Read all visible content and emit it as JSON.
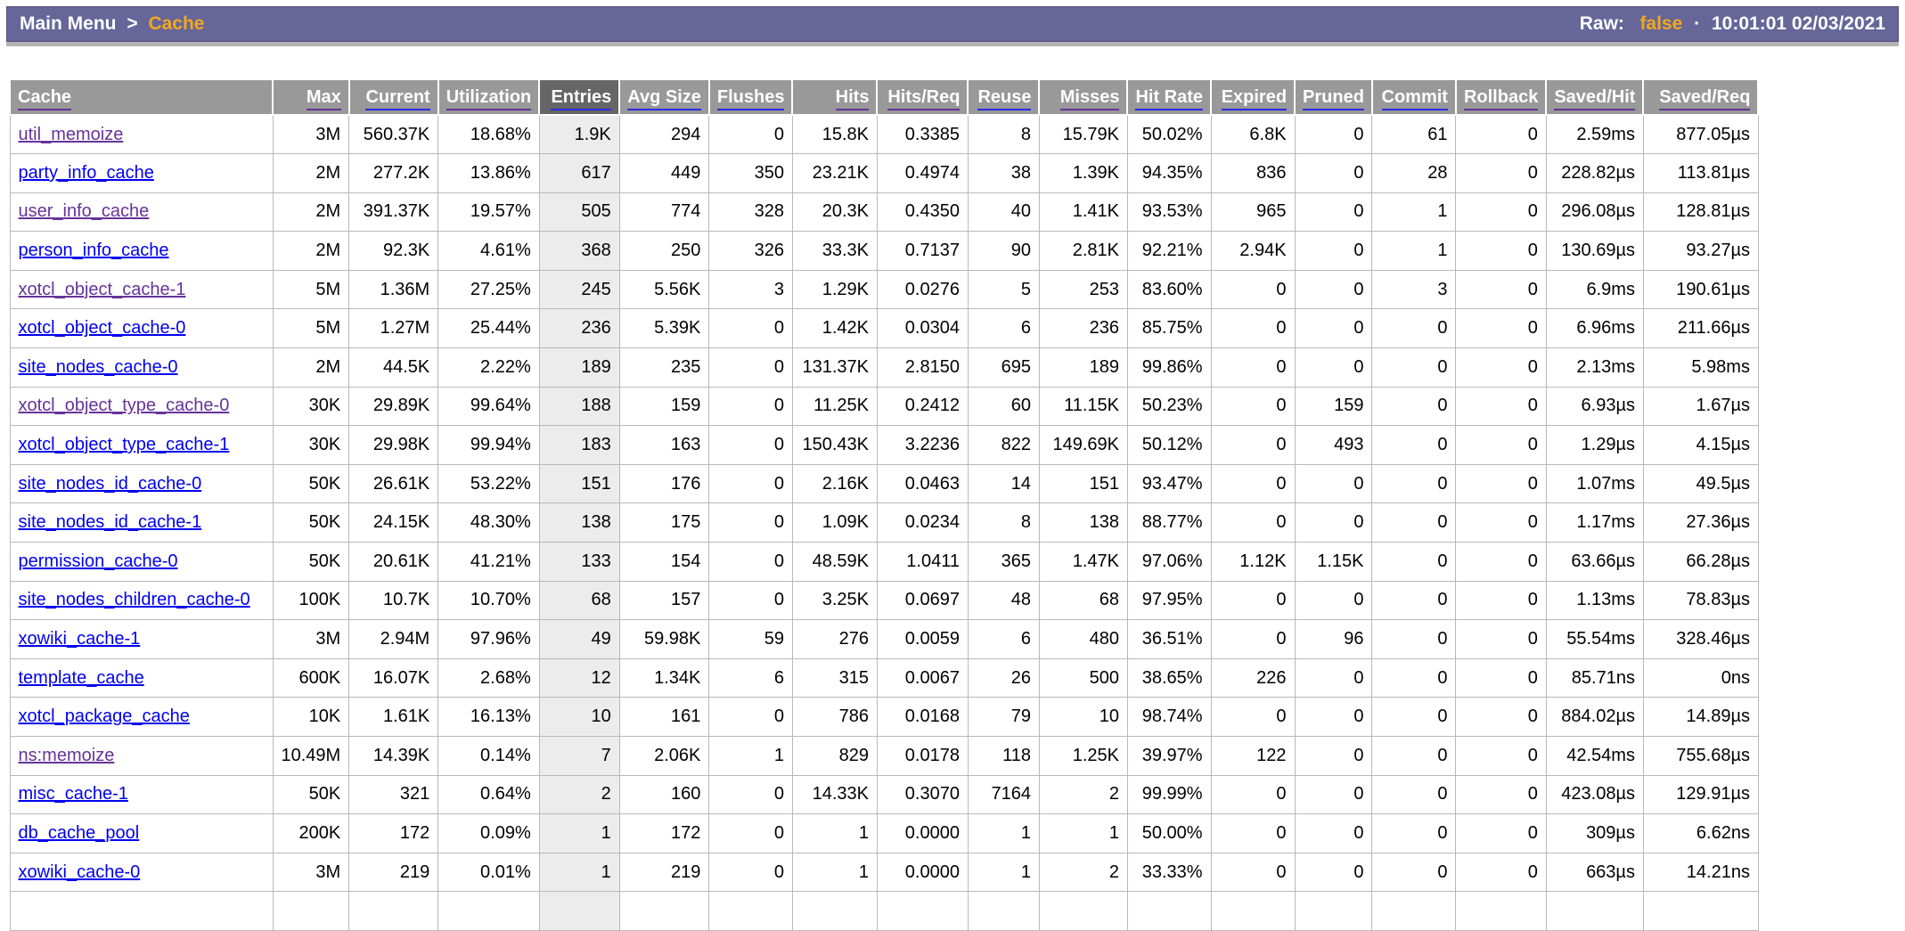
{
  "topbar": {
    "breadcrumb": {
      "root": "Main Menu",
      "separator": ">",
      "current": "Cache"
    },
    "raw": {
      "label": "Raw:",
      "value": "false"
    },
    "separator_dot": "·",
    "timestamp": "10:01:01 02/03/2021"
  },
  "colors": {
    "topbar_bg": "#666699",
    "accent_gold": "#F2A71E",
    "header_bg": "#999999",
    "header_active_bg": "#666666",
    "entries_column_bg": "#ECECEC",
    "link_blue": "#0000EE",
    "link_visited_purple": "#663399"
  },
  "table": {
    "columns": [
      {
        "label": "Cache",
        "align": "left",
        "link": "visited",
        "active": false
      },
      {
        "label": "Max",
        "align": "right",
        "link": "visited",
        "active": false
      },
      {
        "label": "Current",
        "align": "right",
        "link": "unvisited",
        "active": false
      },
      {
        "label": "Utilization",
        "align": "right",
        "link": "visited",
        "active": false
      },
      {
        "label": "Entries",
        "align": "right",
        "link": "unvisited",
        "active": true
      },
      {
        "label": "Avg Size",
        "align": "right",
        "link": "unvisited",
        "active": false
      },
      {
        "label": "Flushes",
        "align": "right",
        "link": "unvisited",
        "active": false
      },
      {
        "label": "Hits",
        "align": "right",
        "link": "visited",
        "active": false
      },
      {
        "label": "Hits/Req",
        "align": "right",
        "link": "visited",
        "active": false
      },
      {
        "label": "Reuse",
        "align": "right",
        "link": "unvisited",
        "active": false
      },
      {
        "label": "Misses",
        "align": "right",
        "link": "visited",
        "active": false
      },
      {
        "label": "Hit Rate",
        "align": "right",
        "link": "unvisited",
        "active": false
      },
      {
        "label": "Expired",
        "align": "right",
        "link": "unvisited",
        "active": false
      },
      {
        "label": "Pruned",
        "align": "right",
        "link": "unvisited",
        "active": false
      },
      {
        "label": "Commit",
        "align": "right",
        "link": "unvisited",
        "active": false
      },
      {
        "label": "Rollback",
        "align": "right",
        "link": "visited",
        "active": false
      },
      {
        "label": "Saved/Hit",
        "align": "right",
        "link": "visited",
        "active": false
      },
      {
        "label": "Saved/Req",
        "align": "right",
        "link": "visited",
        "active": false
      }
    ],
    "rows": [
      {
        "name": "util_memoize",
        "link": "visited",
        "values": [
          "3M",
          "560.37K",
          "18.68%",
          "1.9K",
          "294",
          "0",
          "15.8K",
          "0.3385",
          "8",
          "15.79K",
          "50.02%",
          "6.8K",
          "0",
          "61",
          "0",
          "2.59ms",
          "877.05µs"
        ]
      },
      {
        "name": "party_info_cache",
        "link": "unvisited",
        "values": [
          "2M",
          "277.2K",
          "13.86%",
          "617",
          "449",
          "350",
          "23.21K",
          "0.4974",
          "38",
          "1.39K",
          "94.35%",
          "836",
          "0",
          "28",
          "0",
          "228.82µs",
          "113.81µs"
        ]
      },
      {
        "name": "user_info_cache",
        "link": "visited",
        "values": [
          "2M",
          "391.37K",
          "19.57%",
          "505",
          "774",
          "328",
          "20.3K",
          "0.4350",
          "40",
          "1.41K",
          "93.53%",
          "965",
          "0",
          "1",
          "0",
          "296.08µs",
          "128.81µs"
        ]
      },
      {
        "name": "person_info_cache",
        "link": "unvisited",
        "values": [
          "2M",
          "92.3K",
          "4.61%",
          "368",
          "250",
          "326",
          "33.3K",
          "0.7137",
          "90",
          "2.81K",
          "92.21%",
          "2.94K",
          "0",
          "1",
          "0",
          "130.69µs",
          "93.27µs"
        ]
      },
      {
        "name": "xotcl_object_cache-1",
        "link": "visited",
        "values": [
          "5M",
          "1.36M",
          "27.25%",
          "245",
          "5.56K",
          "3",
          "1.29K",
          "0.0276",
          "5",
          "253",
          "83.60%",
          "0",
          "0",
          "3",
          "0",
          "6.9ms",
          "190.61µs"
        ]
      },
      {
        "name": "xotcl_object_cache-0",
        "link": "unvisited",
        "values": [
          "5M",
          "1.27M",
          "25.44%",
          "236",
          "5.39K",
          "0",
          "1.42K",
          "0.0304",
          "6",
          "236",
          "85.75%",
          "0",
          "0",
          "0",
          "0",
          "6.96ms",
          "211.66µs"
        ]
      },
      {
        "name": "site_nodes_cache-0",
        "link": "unvisited",
        "values": [
          "2M",
          "44.5K",
          "2.22%",
          "189",
          "235",
          "0",
          "131.37K",
          "2.8150",
          "695",
          "189",
          "99.86%",
          "0",
          "0",
          "0",
          "0",
          "2.13ms",
          "5.98ms"
        ]
      },
      {
        "name": "xotcl_object_type_cache-0",
        "link": "visited",
        "values": [
          "30K",
          "29.89K",
          "99.64%",
          "188",
          "159",
          "0",
          "11.25K",
          "0.2412",
          "60",
          "11.15K",
          "50.23%",
          "0",
          "159",
          "0",
          "0",
          "6.93µs",
          "1.67µs"
        ]
      },
      {
        "name": "xotcl_object_type_cache-1",
        "link": "unvisited",
        "values": [
          "30K",
          "29.98K",
          "99.94%",
          "183",
          "163",
          "0",
          "150.43K",
          "3.2236",
          "822",
          "149.69K",
          "50.12%",
          "0",
          "493",
          "0",
          "0",
          "1.29µs",
          "4.15µs"
        ]
      },
      {
        "name": "site_nodes_id_cache-0",
        "link": "unvisited",
        "values": [
          "50K",
          "26.61K",
          "53.22%",
          "151",
          "176",
          "0",
          "2.16K",
          "0.0463",
          "14",
          "151",
          "93.47%",
          "0",
          "0",
          "0",
          "0",
          "1.07ms",
          "49.5µs"
        ]
      },
      {
        "name": "site_nodes_id_cache-1",
        "link": "unvisited",
        "values": [
          "50K",
          "24.15K",
          "48.30%",
          "138",
          "175",
          "0",
          "1.09K",
          "0.0234",
          "8",
          "138",
          "88.77%",
          "0",
          "0",
          "0",
          "0",
          "1.17ms",
          "27.36µs"
        ]
      },
      {
        "name": "permission_cache-0",
        "link": "unvisited",
        "values": [
          "50K",
          "20.61K",
          "41.21%",
          "133",
          "154",
          "0",
          "48.59K",
          "1.0411",
          "365",
          "1.47K",
          "97.06%",
          "1.12K",
          "1.15K",
          "0",
          "0",
          "63.66µs",
          "66.28µs"
        ]
      },
      {
        "name": "site_nodes_children_cache-0",
        "link": "unvisited",
        "values": [
          "100K",
          "10.7K",
          "10.70%",
          "68",
          "157",
          "0",
          "3.25K",
          "0.0697",
          "48",
          "68",
          "97.95%",
          "0",
          "0",
          "0",
          "0",
          "1.13ms",
          "78.83µs"
        ]
      },
      {
        "name": "xowiki_cache-1",
        "link": "unvisited",
        "values": [
          "3M",
          "2.94M",
          "97.96%",
          "49",
          "59.98K",
          "59",
          "276",
          "0.0059",
          "6",
          "480",
          "36.51%",
          "0",
          "96",
          "0",
          "0",
          "55.54ms",
          "328.46µs"
        ]
      },
      {
        "name": "template_cache",
        "link": "unvisited",
        "values": [
          "600K",
          "16.07K",
          "2.68%",
          "12",
          "1.34K",
          "6",
          "315",
          "0.0067",
          "26",
          "500",
          "38.65%",
          "226",
          "0",
          "0",
          "0",
          "85.71ns",
          "0ns"
        ]
      },
      {
        "name": "xotcl_package_cache",
        "link": "unvisited",
        "values": [
          "10K",
          "1.61K",
          "16.13%",
          "10",
          "161",
          "0",
          "786",
          "0.0168",
          "79",
          "10",
          "98.74%",
          "0",
          "0",
          "0",
          "0",
          "884.02µs",
          "14.89µs"
        ]
      },
      {
        "name": "ns:memoize",
        "link": "visited",
        "values": [
          "10.49M",
          "14.39K",
          "0.14%",
          "7",
          "2.06K",
          "1",
          "829",
          "0.0178",
          "118",
          "1.25K",
          "39.97%",
          "122",
          "0",
          "0",
          "0",
          "42.54ms",
          "755.68µs"
        ]
      },
      {
        "name": "misc_cache-1",
        "link": "unvisited",
        "values": [
          "50K",
          "321",
          "0.64%",
          "2",
          "160",
          "0",
          "14.33K",
          "0.3070",
          "7164",
          "2",
          "99.99%",
          "0",
          "0",
          "0",
          "0",
          "423.08µs",
          "129.91µs"
        ]
      },
      {
        "name": "db_cache_pool",
        "link": "unvisited",
        "values": [
          "200K",
          "172",
          "0.09%",
          "1",
          "172",
          "0",
          "1",
          "0.0000",
          "1",
          "1",
          "50.00%",
          "0",
          "0",
          "0",
          "0",
          "309µs",
          "6.62ns"
        ]
      },
      {
        "name": "xowiki_cache-0",
        "link": "unvisited",
        "values": [
          "3M",
          "219",
          "0.01%",
          "1",
          "219",
          "0",
          "1",
          "0.0000",
          "1",
          "2",
          "33.33%",
          "0",
          "0",
          "0",
          "0",
          "663µs",
          "14.21ns"
        ]
      }
    ]
  }
}
